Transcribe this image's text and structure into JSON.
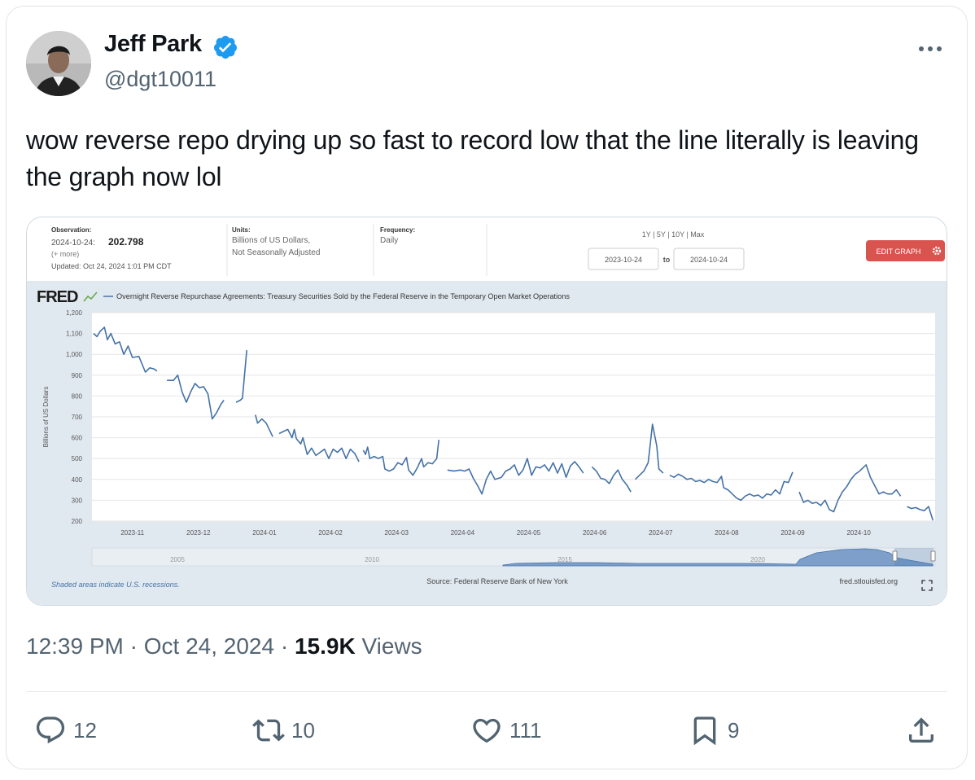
{
  "tweet": {
    "author_name": "Jeff Park",
    "handle": "@dgt10011",
    "text": "wow reverse repo drying up so fast to record low that the line literally is leaving the graph now lol",
    "time": "12:39 PM",
    "date": "Oct 24, 2024",
    "views_count": "15.9K",
    "views_label": "Views",
    "icons": {
      "verified": "verified-badge-icon",
      "more": "more-dots-icon"
    },
    "accent_color": "#1d9bf0"
  },
  "actions": {
    "replies": "12",
    "retweets": "10",
    "likes": "111",
    "bookmarks": "9"
  },
  "fred": {
    "observation_label": "Observation:",
    "observation_date": "2024-10-24:",
    "observation_value": "202.798",
    "more": "(+ more)",
    "updated": "Updated: Oct 24, 2024 1:01 PM CDT",
    "units_label": "Units:",
    "units_line1": "Billions of US Dollars,",
    "units_line2": "Not Seasonally Adjusted",
    "frequency_label": "Frequency:",
    "frequency_value": "Daily",
    "range_links": "1Y | 5Y | 10Y | Max",
    "range_from": "2023-10-24",
    "range_to_label": "to",
    "range_to": "2024-10-24",
    "edit_button": "EDIT GRAPH",
    "logo": "FRED",
    "series_title": "Overnight Reverse Repurchase Agreements: Treasury Securities Sold by the Federal Reserve in the Temporary Open Market Operations",
    "footer_left": "Shaded areas indicate U.S. recessions.",
    "footer_source": "Source: Federal Reserve Bank of New York",
    "footer_right": "fred.stlouisfed.org",
    "brand_red": "#d9534f",
    "panel_bg": "#e1e9f0",
    "line_color": "#4572a7"
  },
  "chart_data": {
    "type": "line",
    "ylabel": "Billions of US Dollars",
    "ylim": [
      200,
      1200
    ],
    "yticks": [
      "200",
      "300",
      "400",
      "500",
      "600",
      "700",
      "800",
      "900",
      "1,000",
      "1,100",
      "1,200"
    ],
    "xticks": [
      "2023-11",
      "2023-12",
      "2024-01",
      "2024-02",
      "2024-03",
      "2024-04",
      "2024-05",
      "2024-06",
      "2024-07",
      "2024-08",
      "2024-09",
      "2024-10"
    ],
    "minimap_labels": [
      "2005",
      "2010",
      "2015",
      "2020"
    ],
    "series": [
      {
        "values": [
          [
            0.0,
            1100
          ],
          [
            0.8,
            1085
          ],
          [
            1.5,
            1110
          ],
          [
            2.5,
            1130
          ],
          [
            3.2,
            1070
          ],
          [
            4.0,
            1100
          ],
          [
            5.0,
            1050
          ],
          [
            6.0,
            1060
          ],
          [
            7.0,
            1000
          ],
          [
            8.0,
            1040
          ],
          [
            9.0,
            985
          ],
          [
            10.5,
            990
          ],
          [
            12.0,
            915
          ],
          [
            13.0,
            935
          ],
          [
            14.0,
            930
          ],
          [
            14.7,
            920
          ],
          null,
          [
            17.0,
            875
          ],
          [
            18.5,
            875
          ],
          [
            19.5,
            900
          ],
          [
            20.5,
            820
          ],
          [
            21.5,
            770
          ],
          [
            22.5,
            820
          ],
          [
            23.5,
            860
          ],
          [
            24.5,
            840
          ],
          [
            25.5,
            845
          ],
          [
            26.5,
            810
          ],
          [
            27.5,
            690
          ],
          [
            28.5,
            720
          ],
          [
            29.5,
            760
          ],
          [
            30.2,
            780
          ],
          null,
          [
            33.0,
            770
          ],
          [
            34.0,
            780
          ],
          [
            34.5,
            790
          ],
          [
            35.5,
            1020
          ],
          null,
          [
            37.5,
            710
          ],
          [
            38.0,
            670
          ],
          [
            39.0,
            690
          ],
          [
            40.0,
            670
          ],
          [
            41.5,
            605
          ],
          null,
          [
            43.0,
            620
          ],
          [
            44.0,
            630
          ],
          [
            45.0,
            640
          ],
          [
            46.0,
            600
          ],
          [
            46.5,
            640
          ],
          [
            47.0,
            595
          ],
          [
            48.0,
            570
          ],
          [
            48.5,
            600
          ],
          [
            49.0,
            560
          ],
          [
            49.5,
            520
          ],
          [
            50.5,
            550
          ],
          [
            51.5,
            515
          ],
          [
            52.5,
            530
          ],
          [
            53.5,
            545
          ],
          [
            54.5,
            500
          ],
          [
            55.5,
            545
          ],
          [
            56.5,
            530
          ],
          [
            57.5,
            550
          ],
          [
            58.5,
            500
          ],
          [
            59.5,
            545
          ],
          [
            60.5,
            525
          ],
          [
            61.5,
            485
          ],
          null,
          [
            62.5,
            540
          ],
          [
            63.0,
            520
          ],
          [
            63.5,
            555
          ],
          [
            64.0,
            500
          ],
          [
            65.0,
            510
          ],
          [
            66.0,
            500
          ],
          [
            67.0,
            510
          ],
          [
            67.5,
            450
          ],
          [
            68.5,
            440
          ],
          [
            69.5,
            450
          ],
          [
            70.5,
            480
          ],
          [
            71.5,
            470
          ],
          [
            72.5,
            505
          ],
          [
            73.0,
            445
          ],
          [
            74.0,
            420
          ],
          [
            75.0,
            455
          ],
          [
            76.0,
            500
          ],
          [
            76.5,
            460
          ],
          [
            77.5,
            480
          ],
          [
            78.5,
            475
          ],
          [
            79.5,
            500
          ],
          [
            80.0,
            590
          ],
          null,
          [
            82.0,
            445
          ],
          [
            83.5,
            440
          ],
          [
            85.0,
            445
          ],
          [
            86.0,
            440
          ],
          [
            87.0,
            450
          ],
          [
            88.0,
            405
          ],
          [
            89.0,
            370
          ],
          [
            90.0,
            330
          ],
          [
            91.0,
            400
          ],
          [
            92.0,
            440
          ],
          [
            93.0,
            400
          ],
          [
            94.5,
            410
          ],
          [
            95.5,
            440
          ],
          [
            96.5,
            450
          ],
          [
            97.5,
            470
          ],
          [
            98.5,
            420
          ],
          [
            99.5,
            445
          ],
          [
            100.5,
            500
          ],
          [
            101.5,
            420
          ],
          [
            102.5,
            460
          ],
          [
            103.5,
            455
          ],
          [
            104.5,
            470
          ],
          [
            105.5,
            440
          ],
          [
            106.5,
            480
          ],
          [
            107.5,
            430
          ],
          [
            108.5,
            475
          ],
          [
            109.5,
            410
          ],
          [
            110.5,
            465
          ],
          [
            111.5,
            485
          ],
          [
            112.5,
            460
          ],
          [
            113.5,
            430
          ],
          null,
          [
            115.5,
            460
          ],
          [
            116.5,
            440
          ],
          [
            117.5,
            405
          ],
          [
            118.5,
            400
          ],
          [
            119.5,
            380
          ],
          [
            120.5,
            420
          ],
          [
            121.5,
            445
          ],
          [
            122.5,
            400
          ],
          [
            123.5,
            375
          ],
          [
            124.5,
            340
          ],
          null,
          [
            125.5,
            400
          ],
          [
            126.5,
            420
          ],
          [
            127.5,
            440
          ],
          [
            128.5,
            480
          ],
          [
            129.0,
            570
          ],
          [
            129.5,
            665
          ],
          [
            130.5,
            560
          ],
          [
            131.0,
            450
          ],
          [
            132.0,
            430
          ],
          null,
          [
            133.5,
            420
          ],
          [
            134.5,
            410
          ],
          [
            135.5,
            425
          ],
          [
            136.5,
            415
          ],
          [
            137.5,
            400
          ],
          [
            138.5,
            405
          ],
          [
            139.5,
            390
          ],
          [
            140.5,
            395
          ],
          [
            141.5,
            385
          ],
          [
            142.5,
            400
          ],
          [
            143.5,
            390
          ],
          [
            144.5,
            385
          ],
          [
            145.5,
            415
          ],
          [
            146.0,
            360
          ],
          [
            147.0,
            350
          ],
          [
            148.0,
            330
          ],
          [
            149.0,
            310
          ],
          [
            150.0,
            300
          ],
          [
            151.0,
            320
          ],
          [
            152.0,
            330
          ],
          [
            153.0,
            320
          ],
          [
            154.0,
            325
          ],
          [
            155.0,
            310
          ],
          [
            156.0,
            330
          ],
          [
            157.0,
            325
          ],
          [
            158.0,
            350
          ],
          [
            159.0,
            330
          ],
          [
            160.0,
            390
          ],
          [
            161.0,
            385
          ],
          [
            162.0,
            435
          ],
          null,
          [
            163.5,
            340
          ],
          [
            164.5,
            290
          ],
          [
            165.5,
            300
          ],
          [
            166.5,
            285
          ],
          [
            167.5,
            290
          ],
          [
            168.5,
            275
          ],
          [
            169.5,
            300
          ],
          [
            170.5,
            255
          ],
          [
            171.5,
            245
          ],
          [
            172.5,
            300
          ],
          [
            173.5,
            340
          ],
          [
            174.5,
            365
          ],
          [
            175.5,
            400
          ],
          [
            176.5,
            425
          ],
          [
            177.5,
            440
          ],
          [
            178.5,
            460
          ],
          [
            179.0,
            470
          ],
          [
            180.0,
            410
          ],
          [
            181.0,
            370
          ],
          [
            182.0,
            330
          ],
          [
            183.0,
            340
          ],
          [
            184.0,
            330
          ],
          [
            185.0,
            330
          ],
          [
            186.0,
            350
          ],
          [
            187.0,
            320
          ],
          null,
          [
            188.5,
            270
          ],
          [
            189.5,
            260
          ],
          [
            190.5,
            265
          ],
          [
            191.5,
            255
          ],
          [
            192.5,
            250
          ],
          [
            193.5,
            270
          ],
          [
            194.5,
            203
          ]
        ]
      }
    ],
    "grid": true,
    "legend": "top-left"
  }
}
